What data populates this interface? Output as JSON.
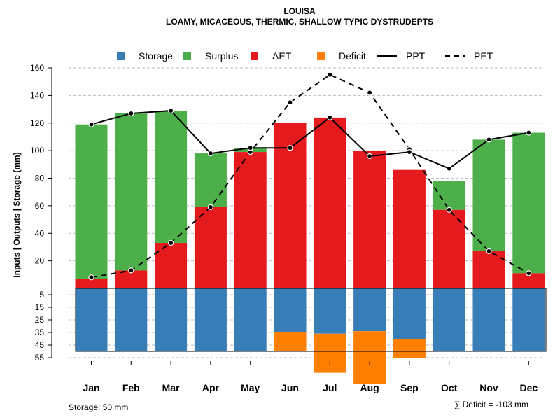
{
  "chart_data": {
    "type": "bar",
    "title": "LOUISA",
    "subtitle": "LOAMY, MICACEOUS, THERMIC, SHALLOW TYPIC DYSTRUDEPTS",
    "ylabel": "Inputs | Outputs | Storage    (mm)",
    "legend_position": "top",
    "grid": true,
    "categories": [
      "Jan",
      "Feb",
      "Mar",
      "Apr",
      "May",
      "Jun",
      "Jul",
      "Aug",
      "Sep",
      "Oct",
      "Nov",
      "Dec"
    ],
    "upper_axis": {
      "ylim": [
        0,
        160
      ],
      "ticks": [
        "20",
        "40",
        "60",
        "80",
        "100",
        "120",
        "140",
        "160"
      ]
    },
    "lower_axis": {
      "ylim": [
        0,
        55
      ],
      "ticks": [
        "5",
        "15",
        "25",
        "35",
        "45",
        "55"
      ]
    },
    "series": [
      {
        "name": "Storage",
        "color": "#377EB8",
        "values": [
          50,
          50,
          50,
          50,
          50,
          50,
          50,
          50,
          50,
          50,
          50,
          50
        ]
      },
      {
        "name": "Surplus",
        "color": "#4DAF4A",
        "values": [
          112,
          114,
          96,
          39,
          3,
          0,
          0,
          0,
          0,
          21,
          81,
          102
        ]
      },
      {
        "name": "AET",
        "color": "#E41A1C",
        "values": [
          7,
          13,
          33,
          59,
          99,
          120,
          124,
          100,
          86,
          57,
          27,
          11
        ]
      },
      {
        "name": "Deficit",
        "color": "#FF7F00",
        "values": [
          0,
          0,
          0,
          0,
          0,
          15,
          31,
          42,
          15,
          0,
          0,
          0
        ]
      },
      {
        "name": "PPT",
        "color": "#000000",
        "style": "solid",
        "values": [
          119,
          127,
          129,
          98,
          102,
          102,
          124,
          96,
          99,
          87,
          108,
          113
        ]
      },
      {
        "name": "PET",
        "color": "#000000",
        "style": "dashed",
        "values": [
          8,
          13,
          33,
          59,
          99,
          135,
          155,
          142,
          101,
          57,
          27,
          11
        ]
      }
    ],
    "storage_remaining": [
      50,
      50,
      50,
      50,
      50,
      35,
      36,
      34,
      40,
      50,
      50,
      50
    ],
    "annotations": {
      "storage": "Storage: 50 mm",
      "deficit": "∑ Deficit = -103 mm"
    }
  }
}
